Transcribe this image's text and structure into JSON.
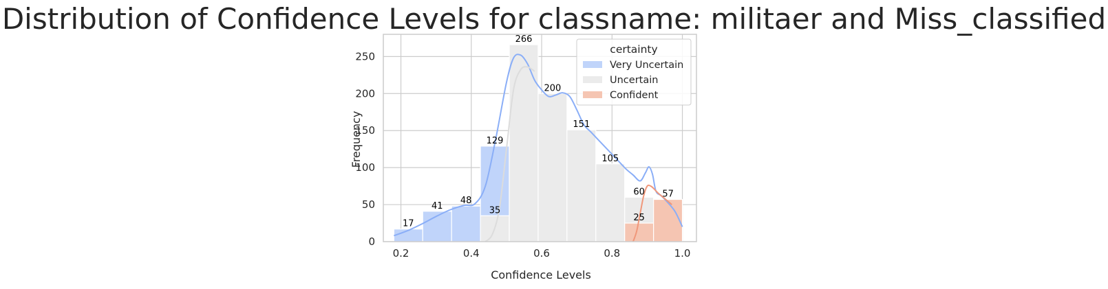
{
  "chart_data": {
    "type": "bar",
    "title": "Distribution of Confidence Levels for classname: militaer and Miss_classified",
    "xlabel": "Confidence Levels",
    "ylabel": "Frequency",
    "xlim": [
      0.15,
      1.04
    ],
    "ylim": [
      0,
      280
    ],
    "xticks": [
      "0.2",
      "0.4",
      "0.6",
      "0.8",
      "1.0"
    ],
    "yticks": [
      "0",
      "50",
      "100",
      "150",
      "200",
      "250"
    ],
    "grid": true,
    "legend": {
      "title": "certainty",
      "position": "top-right"
    },
    "colors": {
      "Very Uncertain": "#c0d4fa",
      "Uncertain": "#ebebeb",
      "Confident": "#f5c5b2"
    },
    "kde_colors": {
      "Very Uncertain": "#8aaef7",
      "Uncertain": "#dcdcdc",
      "Confident": "#f0977a"
    },
    "bin_edges": [
      0.18,
      0.262,
      0.344,
      0.426,
      0.508,
      0.59,
      0.672,
      0.754,
      0.836,
      0.918,
      1.0
    ],
    "series": [
      {
        "name": "Very Uncertain",
        "values": [
          17,
          41,
          48,
          129,
          0,
          0,
          0,
          0,
          0,
          0
        ]
      },
      {
        "name": "Uncertain",
        "values": [
          0,
          0,
          0,
          35,
          266,
          200,
          151,
          105,
          60,
          0
        ]
      },
      {
        "name": "Confident",
        "values": [
          0,
          0,
          0,
          0,
          0,
          0,
          0,
          0,
          25,
          57
        ]
      }
    ],
    "bar_labels": [
      {
        "x": 0.221,
        "y": 17,
        "text": "17"
      },
      {
        "x": 0.303,
        "y": 41,
        "text": "41"
      },
      {
        "x": 0.385,
        "y": 48,
        "text": "48"
      },
      {
        "x": 0.467,
        "y": 129,
        "text": "129"
      },
      {
        "x": 0.467,
        "y": 35,
        "text": "35"
      },
      {
        "x": 0.549,
        "y": 266,
        "text": "266"
      },
      {
        "x": 0.631,
        "y": 200,
        "text": "200"
      },
      {
        "x": 0.713,
        "y": 151,
        "text": "151"
      },
      {
        "x": 0.795,
        "y": 105,
        "text": "105"
      },
      {
        "x": 0.877,
        "y": 60,
        "text": "60"
      },
      {
        "x": 0.877,
        "y": 25,
        "text": "25"
      },
      {
        "x": 0.959,
        "y": 57,
        "text": "57"
      }
    ],
    "kde": [
      {
        "name": "Very Uncertain",
        "x": [
          0.18,
          0.22,
          0.26,
          0.3,
          0.34,
          0.38,
          0.41,
          0.44,
          0.47,
          0.5,
          0.52,
          0.54,
          0.56,
          0.58,
          0.6,
          0.62,
          0.64,
          0.66,
          0.68,
          0.7,
          0.72,
          0.74,
          0.76,
          0.78,
          0.8,
          0.82,
          0.84,
          0.86,
          0.88,
          0.895,
          0.905,
          0.915,
          0.925,
          0.94,
          0.96,
          0.98,
          1.0
        ],
        "y": [
          8,
          15,
          24,
          34,
          43,
          49,
          51,
          75,
          140,
          215,
          248,
          252,
          240,
          218,
          205,
          196,
          198,
          201,
          196,
          178,
          158,
          148,
          138,
          128,
          118,
          108,
          98,
          90,
          82,
          93,
          101,
          91,
          68,
          62,
          52,
          40,
          20
        ]
      },
      {
        "name": "Uncertain",
        "x": [
          0.44,
          0.46,
          0.48,
          0.5,
          0.52,
          0.54,
          0.56,
          0.58
        ],
        "y": [
          0,
          10,
          45,
          125,
          205,
          232,
          236,
          230
        ]
      },
      {
        "name": "Confident",
        "x": [
          0.86,
          0.87,
          0.88,
          0.89,
          0.9,
          0.91,
          0.92,
          0.93,
          0.95,
          0.97
        ],
        "y": [
          0,
          14,
          38,
          62,
          75,
          75,
          71,
          66,
          58,
          50
        ]
      }
    ]
  }
}
